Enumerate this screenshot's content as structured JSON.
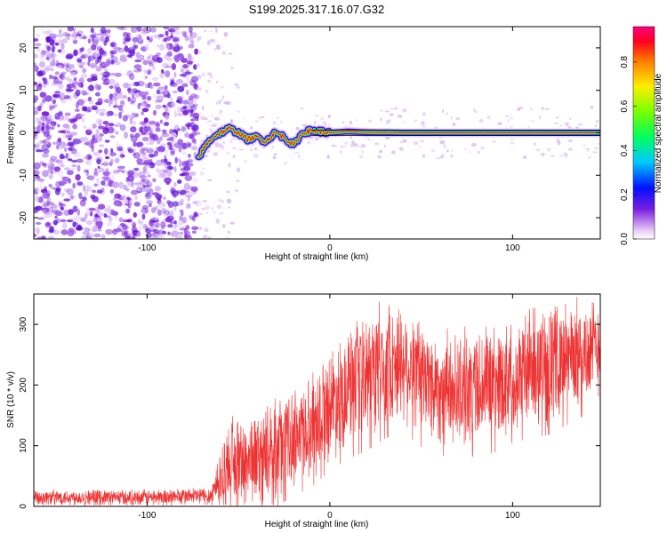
{
  "title": "S199.2025.317.16.07.G32",
  "chart_data": [
    {
      "type": "heatmap",
      "name": "spectrogram",
      "xlabel": "Height of straight line (km)",
      "ylabel": "Frequency (Hz)",
      "xlim": [
        -162,
        148
      ],
      "ylim": [
        -25,
        25
      ],
      "xticks": [
        -100,
        0,
        100
      ],
      "yticks": [
        -20,
        -10,
        0,
        10,
        20
      ],
      "noise_region_x": [
        -162,
        -72
      ],
      "sparse_region_x": [
        -72,
        -50
      ],
      "tone_trace": {
        "x": [
          -72,
          -68,
          -64,
          -60,
          -55,
          -50,
          -45,
          -40,
          -35,
          -30,
          -25,
          -20,
          -15,
          -10,
          -5,
          0,
          10,
          20,
          40,
          60,
          80,
          100,
          120,
          148
        ],
        "freq": [
          -6,
          -3,
          -1,
          0,
          1,
          0,
          -1.5,
          -1,
          -2,
          0,
          -1,
          -3,
          0,
          0.5,
          0.3,
          0,
          0.3,
          0.1,
          0,
          0,
          0,
          0,
          0,
          0
        ]
      },
      "colorbar": {
        "label": "Normalized spectral amplitude",
        "range": [
          0,
          0.96
        ],
        "ticks": [
          "0.0",
          "0.2",
          "0.4",
          "0.6",
          "0.8"
        ]
      }
    },
    {
      "type": "line",
      "name": "snr",
      "xlabel": "Height of straight line (km)",
      "ylabel": "SNR (10 * v/v)",
      "xlim": [
        -162,
        148
      ],
      "ylim": [
        0,
        350
      ],
      "xticks": [
        -100,
        0,
        100
      ],
      "yticks": [
        0,
        100,
        200,
        300
      ],
      "color": "#ee3333",
      "envelope": {
        "x": [
          -162,
          -100,
          -65,
          -60,
          -55,
          -50,
          -40,
          -30,
          -20,
          -10,
          0,
          10,
          20,
          30,
          40,
          50,
          60,
          70,
          80,
          90,
          100,
          110,
          120,
          130,
          140,
          148
        ],
        "mean": [
          15,
          15,
          18,
          50,
          70,
          75,
          80,
          95,
          115,
          135,
          170,
          195,
          215,
          235,
          240,
          215,
          195,
          190,
          200,
          205,
          215,
          230,
          235,
          245,
          255,
          265
        ],
        "spread": [
          12,
          12,
          14,
          50,
          70,
          70,
          70,
          75,
          75,
          80,
          85,
          90,
          95,
          95,
          90,
          90,
          85,
          85,
          90,
          90,
          85,
          90,
          90,
          85,
          80,
          75
        ]
      }
    }
  ]
}
